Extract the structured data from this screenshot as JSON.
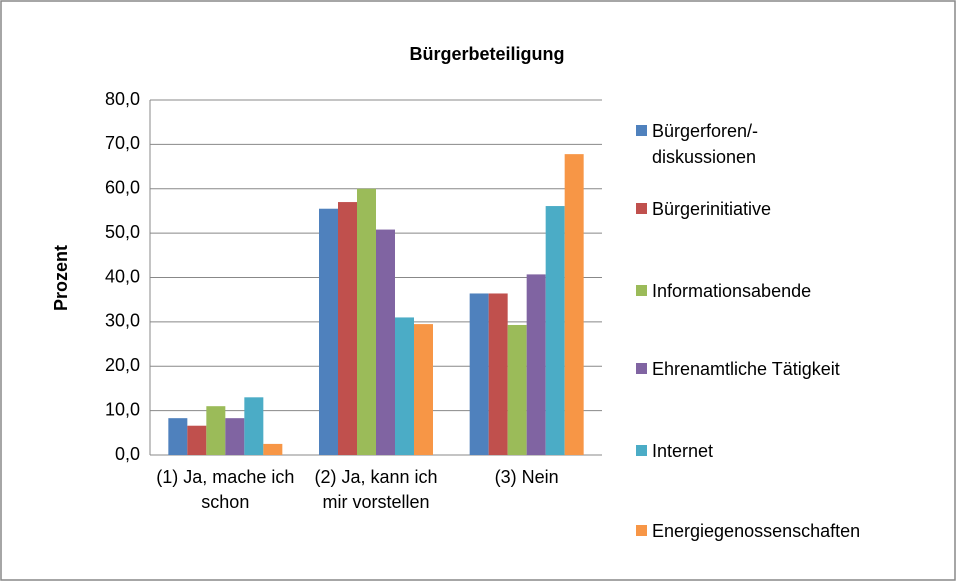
{
  "chart_data": {
    "type": "bar",
    "title": "Bürgerbeteiligung",
    "y_label": "Prozent",
    "categories": [
      "(1)  Ja, mache ich schon",
      "(2)  Ja, kann ich mir vorstellen",
      "(3)  Nein"
    ],
    "series": [
      {
        "name": "Bürgerforen/-diskussionen",
        "color": "#4F81BD",
        "values": [
          8.3,
          55.5,
          36.4
        ]
      },
      {
        "name": "Bürgerinitiative",
        "color": "#C0504D",
        "values": [
          6.6,
          57.0,
          36.4
        ]
      },
      {
        "name": "Informationsabende",
        "color": "#9BBB59",
        "values": [
          11.0,
          60.0,
          29.3
        ]
      },
      {
        "name": "Ehrenamtliche Tätigkeit",
        "color": "#8064A2",
        "values": [
          8.3,
          50.8,
          40.7
        ]
      },
      {
        "name": "Internet",
        "color": "#4BACC6",
        "values": [
          13.0,
          31.0,
          56.1
        ]
      },
      {
        "name": "Energiegenossenschaften",
        "color": "#F79646",
        "values": [
          2.5,
          29.5,
          67.8
        ]
      }
    ],
    "ylim": [
      0,
      80
    ],
    "yticks": [
      {
        "value": 0,
        "label": "0,0"
      },
      {
        "value": 10,
        "label": "10,0"
      },
      {
        "value": 20,
        "label": "20,0"
      },
      {
        "value": 30,
        "label": "30,0"
      },
      {
        "value": 40,
        "label": "40,0"
      },
      {
        "value": 50,
        "label": "50,0"
      },
      {
        "value": 60,
        "label": "60,0"
      },
      {
        "value": 70,
        "label": "70,0"
      },
      {
        "value": 80,
        "label": "80,0"
      }
    ],
    "grid": true
  }
}
